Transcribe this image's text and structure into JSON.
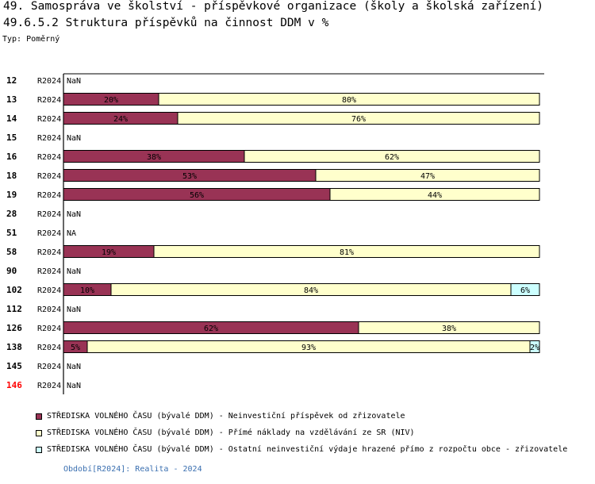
{
  "header": {
    "title": "49. Samospráva ve školství - příspěvkové organizace (školy a školská zařízení)",
    "subtitle": "49.6.5.2 Struktura příspěvků na činnost DDM v %",
    "type_label": "Typ: Poměrný"
  },
  "colors": {
    "series1": "#993355",
    "series2": "#ffffcc",
    "series3": "#ccffff",
    "highlight_category": "#ff0000"
  },
  "chart_data": {
    "type": "bar",
    "orientation": "horizontal",
    "stacked": true,
    "normalized": true,
    "title": "49.6.5.2 Struktura příspěvků na činnost DDM v %",
    "xlim": [
      0,
      100
    ],
    "categories": [
      "12",
      "13",
      "14",
      "15",
      "16",
      "18",
      "19",
      "28",
      "51",
      "58",
      "90",
      "102",
      "112",
      "126",
      "138",
      "145",
      "146"
    ],
    "highlighted_category": "146",
    "period_labels": [
      "R2024",
      "R2024",
      "R2024",
      "R2024",
      "R2024",
      "R2024",
      "R2024",
      "R2024",
      "R2024",
      "R2024",
      "R2024",
      "R2024",
      "R2024",
      "R2024",
      "R2024",
      "R2024",
      "R2024"
    ],
    "missing_labels": [
      "NaN",
      null,
      null,
      "NaN",
      null,
      null,
      null,
      "NaN",
      "NA",
      null,
      "NaN",
      null,
      "NaN",
      null,
      null,
      "NaN",
      "NaN"
    ],
    "series": [
      {
        "name": "STŘEDISKA VOLNÉHO ČASU (bývalé DDM)  - Neinvestiční příspěvek od zřizovatele",
        "values": [
          null,
          20,
          24,
          null,
          38,
          53,
          56,
          null,
          null,
          19,
          null,
          10,
          null,
          62,
          5,
          null,
          null
        ]
      },
      {
        "name": "STŘEDISKA VOLNÉHO ČASU (bývalé DDM)  - Přímé náklady na vzdělávání ze SR (NIV)",
        "values": [
          null,
          80,
          76,
          null,
          62,
          47,
          44,
          null,
          null,
          81,
          null,
          84,
          null,
          38,
          93,
          null,
          null
        ]
      },
      {
        "name": "STŘEDISKA VOLNÉHO ČASU (bývalé DDM)  - Ostatní neinvestiční výdaje hrazené přímo z rozpočtu obce - zřizovatele",
        "values": [
          null,
          0,
          0,
          null,
          0,
          0,
          0,
          null,
          null,
          0,
          null,
          6,
          null,
          0,
          2,
          null,
          null
        ]
      }
    ]
  },
  "footer": {
    "period": "Období[R2024]: Realita - 2024"
  }
}
